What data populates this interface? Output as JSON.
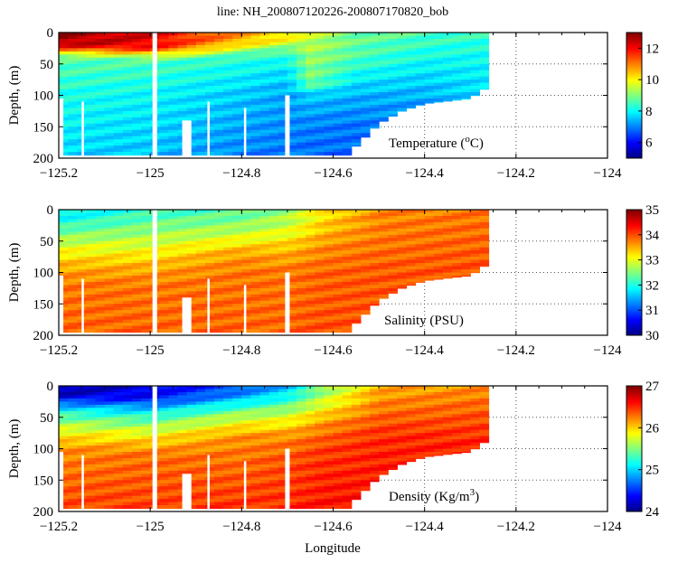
{
  "title": "line: NH_200807120226-200807170820_bob",
  "chart_data": {
    "type": "heatmap",
    "title": "line: NH_200807120226-200807170820_bob",
    "xlabel": "Longitude",
    "xlim": [
      -125.2,
      -124
    ],
    "xticks": [
      "-125.2",
      "-125",
      "-124.8",
      "-124.6",
      "-124.4",
      "-124.2",
      "-124"
    ],
    "xtick_values": [
      -125.2,
      -125,
      -124.8,
      -124.6,
      -124.4,
      -124.2,
      -124
    ],
    "ylim": [
      0,
      200
    ],
    "yticks": [
      "0",
      "50",
      "100",
      "150",
      "200"
    ],
    "ytick_values": [
      0,
      50,
      100,
      150,
      200
    ],
    "grid": "dotted",
    "bottom_depth": [
      [
        -125.2,
        195
      ],
      [
        -124.57,
        195
      ],
      [
        -124.5,
        145
      ],
      [
        -124.45,
        125
      ],
      [
        -124.4,
        113
      ],
      [
        -124.3,
        105
      ],
      [
        -124.27,
        90
      ],
      [
        -124.26,
        85
      ]
    ],
    "gaps": [
      [
        -125.205,
        -125.19,
        105,
        200
      ],
      [
        -125.15,
        -125.145,
        110,
        200
      ],
      [
        -124.995,
        -124.985,
        0,
        200
      ],
      [
        -124.93,
        -124.91,
        140,
        200
      ],
      [
        -124.875,
        -124.87,
        110,
        200
      ],
      [
        -124.795,
        -124.79,
        120,
        200
      ],
      [
        -124.705,
        -124.695,
        100,
        200
      ]
    ],
    "panels": [
      {
        "name": "temperature",
        "ylabel": "Depth, (m)",
        "label": "Temperature (",
        "label_sup": "o",
        "label_end": "C)",
        "clim": [
          5,
          13
        ],
        "cticks": [
          "6",
          "8",
          "10",
          "12"
        ],
        "ctick_values": [
          6,
          8,
          10,
          12
        ],
        "profiles": [
          {
            "lon": -125.2,
            "depth": [
              0,
              20,
              30,
              40,
              100,
              200
            ],
            "value": [
              12.8,
              12.6,
              10.5,
              8.7,
              8.2,
              7.7
            ]
          },
          {
            "lon": -125.0,
            "depth": [
              0,
              25,
              35,
              45,
              100,
              200
            ],
            "value": [
              12.3,
              12.0,
              10.0,
              8.6,
              8.0,
              7.5
            ]
          },
          {
            "lon": -124.8,
            "depth": [
              0,
              15,
              25,
              40,
              100,
              200
            ],
            "value": [
              10.8,
              10.6,
              9.6,
              8.3,
              7.6,
              7.0
            ]
          },
          {
            "lon": -124.7,
            "depth": [
              0,
              15,
              30,
              60,
              100,
              200
            ],
            "value": [
              10.3,
              9.8,
              8.5,
              7.8,
              7.3,
              6.9
            ]
          },
          {
            "lon": -124.65,
            "depth": [
              0,
              40,
              80,
              100,
              150,
              200
            ],
            "value": [
              9.6,
              9.2,
              8.9,
              7.6,
              7.0,
              6.8
            ]
          },
          {
            "lon": -124.55,
            "depth": [
              0,
              40,
              70,
              100,
              150,
              200
            ],
            "value": [
              8.9,
              8.6,
              8.0,
              7.4,
              6.9,
              6.8
            ]
          },
          {
            "lon": -124.4,
            "depth": [
              0,
              50,
              80,
              120,
              200
            ],
            "value": [
              8.6,
              8.0,
              7.6,
              7.2,
              7.0
            ]
          },
          {
            "lon": -124.26,
            "depth": [
              0,
              50,
              90,
              200
            ],
            "value": [
              8.4,
              8.0,
              7.8,
              7.6
            ]
          }
        ]
      },
      {
        "name": "salinity",
        "ylabel": "Depth, (m)",
        "label": "Salinity (PSU)",
        "clim": [
          30,
          35
        ],
        "cticks": [
          "30",
          "31",
          "32",
          "33",
          "34",
          "35"
        ],
        "ctick_values": [
          30,
          31,
          32,
          33,
          34,
          35
        ],
        "profiles": [
          {
            "lon": -125.2,
            "depth": [
              0,
              15,
              35,
              60,
              90,
              120,
              200
            ],
            "value": [
              31.8,
              31.9,
              32.4,
              33.0,
              33.5,
              33.8,
              33.9
            ]
          },
          {
            "lon": -125.0,
            "depth": [
              0,
              15,
              35,
              60,
              90,
              120,
              200
            ],
            "value": [
              32.1,
              32.3,
              32.6,
              33.0,
              33.5,
              33.8,
              33.9
            ]
          },
          {
            "lon": -124.8,
            "depth": [
              0,
              20,
              45,
              70,
              100,
              200
            ],
            "value": [
              32.3,
              32.5,
              33.0,
              33.6,
              33.8,
              33.9
            ]
          },
          {
            "lon": -124.7,
            "depth": [
              0,
              30,
              60,
              100,
              200
            ],
            "value": [
              32.6,
              32.9,
              33.4,
              33.8,
              33.9
            ]
          },
          {
            "lon": -124.62,
            "depth": [
              0,
              30,
              60,
              100,
              200
            ],
            "value": [
              33.2,
              33.4,
              33.7,
              33.9,
              34.0
            ]
          },
          {
            "lon": -124.5,
            "depth": [
              0,
              50,
              100,
              200
            ],
            "value": [
              33.7,
              33.8,
              33.95,
              34.0
            ]
          },
          {
            "lon": -124.26,
            "depth": [
              0,
              50,
              100,
              200
            ],
            "value": [
              33.8,
              33.9,
              34.0,
              34.0
            ]
          }
        ]
      },
      {
        "name": "density",
        "ylabel": "Depth, (m)",
        "label": "Density (Kg/m",
        "label_sup": "3",
        "label_end": ")",
        "clim": [
          24,
          27
        ],
        "cticks": [
          "24",
          "25",
          "26",
          "27"
        ],
        "ctick_values": [
          24,
          25,
          26,
          27
        ],
        "profiles": [
          {
            "lon": -125.2,
            "depth": [
              0,
              15,
              30,
              45,
              70,
              100,
              200
            ],
            "value": [
              24.1,
              24.2,
              24.8,
              25.3,
              25.8,
              26.2,
              26.45
            ]
          },
          {
            "lon": -125.0,
            "depth": [
              0,
              20,
              35,
              50,
              80,
              110,
              200
            ],
            "value": [
              24.3,
              24.4,
              24.9,
              25.3,
              25.9,
              26.3,
              26.45
            ]
          },
          {
            "lon": -124.8,
            "depth": [
              0,
              15,
              30,
              50,
              80,
              200
            ],
            "value": [
              24.6,
              24.8,
              25.2,
              25.7,
              26.2,
              26.5
            ]
          },
          {
            "lon": -124.7,
            "depth": [
              0,
              20,
              45,
              80,
              120,
              200
            ],
            "value": [
              24.9,
              25.2,
              25.7,
              26.2,
              26.4,
              26.5
            ]
          },
          {
            "lon": -124.62,
            "depth": [
              0,
              30,
              60,
              100,
              200
            ],
            "value": [
              25.5,
              25.8,
              26.2,
              26.45,
              26.6
            ]
          },
          {
            "lon": -124.5,
            "depth": [
              0,
              40,
              80,
              200
            ],
            "value": [
              26.1,
              26.3,
              26.5,
              26.6
            ]
          },
          {
            "lon": -124.26,
            "depth": [
              0,
              50,
              100,
              200
            ],
            "value": [
              26.2,
              26.4,
              26.55,
              26.6
            ]
          }
        ]
      }
    ]
  }
}
